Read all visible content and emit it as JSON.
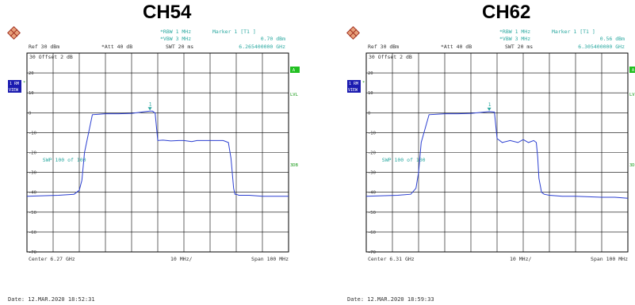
{
  "chart_data": [
    {
      "type": "line",
      "title": "CH54",
      "ylim": [
        -70,
        30
      ],
      "yticks": [
        20,
        10,
        0,
        -10,
        -20,
        -30,
        -40,
        -50,
        -60,
        -70
      ],
      "x_span_mhz": 100,
      "series": [
        {
          "x_mhz": [
            -50,
            -38,
            -32,
            -30,
            -29,
            -28,
            -25,
            -20,
            -15,
            -10,
            -5,
            -3,
            -2,
            -1,
            0,
            2,
            5,
            8,
            10,
            13,
            15,
            20,
            25,
            27,
            28,
            29,
            29.5,
            30,
            31,
            32,
            35,
            40,
            45,
            50
          ],
          "y_dbm": [
            -42,
            -41.5,
            -41,
            -39,
            -34,
            -20,
            -1,
            -0.5,
            -0.5,
            -0.3,
            0.5,
            0.8,
            0.8,
            -0.2,
            -14,
            -13.8,
            -14.2,
            -14,
            -14,
            -14.5,
            -14,
            -14,
            -14,
            -15,
            -23,
            -38,
            -41,
            -41,
            -41.5,
            -41.5,
            -41.5,
            -42,
            -42,
            -42
          ]
        }
      ],
      "labels": {
        "ref": "Ref  30 dBm",
        "att": "*Att  40 dB",
        "rbw": "*RBW 1 MHz",
        "vbw": "*VBW 3 MHz",
        "swt": "SWT 20 ms",
        "marker": "Marker 1 [T1 ]",
        "marker_level": "0.70 dBm",
        "marker_freq": "6.265400000 GHz",
        "offset": "30  Offset  2 dB",
        "sweep": "SWP    100 of    100",
        "center": "Center 6.27 GHz",
        "div": "10 MHz/",
        "span": "Span 100 MHz",
        "date": "Date: 12.MAR.2020  18:52:31",
        "marker_num": "1",
        "badge_1": "1 RM",
        "badge_2": "VIEW",
        "side_a": "A",
        "side_lvl": "LVL",
        "side_3db": "3DB"
      }
    },
    {
      "type": "line",
      "title": "CH62",
      "ylim": [
        -70,
        30
      ],
      "yticks": [
        20,
        10,
        0,
        -10,
        -20,
        -30,
        -40,
        -50,
        -60,
        -70
      ],
      "x_span_mhz": 100,
      "series": [
        {
          "x_mhz": [
            -50,
            -38,
            -33,
            -31,
            -30,
            -29,
            -26,
            -20,
            -15,
            -10,
            -5,
            -3,
            -1,
            0,
            2,
            5,
            8,
            10,
            12,
            14,
            15,
            15.5,
            16,
            17,
            18,
            20,
            25,
            30,
            40,
            45,
            50
          ],
          "y_dbm": [
            -42,
            -41.5,
            -41,
            -38,
            -30,
            -15,
            -1,
            -0.5,
            -0.5,
            -0.3,
            0.3,
            0.56,
            0.3,
            -13,
            -15,
            -14,
            -15,
            -13.5,
            -15,
            -14,
            -15,
            -22,
            -33,
            -40,
            -41,
            -41.5,
            -42,
            -42,
            -42.5,
            -42.5,
            -43
          ]
        }
      ],
      "labels": {
        "ref": "Ref  30 dBm",
        "att": "*Att  40 dB",
        "rbw": "*RBW 1 MHz",
        "vbw": "*VBW 3 MHz",
        "swt": "SWT 20 ms",
        "marker": "Marker 1 [T1 ]",
        "marker_level": "0.56 dBm",
        "marker_freq": "6.305400000 GHz",
        "offset": "30  Offset  2 dB",
        "sweep": "SWP    100 of    100",
        "center": "Center 6.31 GHz",
        "div": "10 MHz/",
        "span": "Span 100 MHz",
        "date": "Date: 12.MAR.2020  18:59:33",
        "marker_num": "1",
        "badge_1": "1 RM",
        "badge_2": "VIEW",
        "side_a": "A",
        "side_lvl": "LVL",
        "side_3db": "3DB"
      }
    }
  ],
  "colors": {
    "trace": "#2b3fd1",
    "annotation": "#2aa8a0",
    "badge": "#1b1bb0",
    "side_green": "#22c022",
    "grid": "#000000"
  }
}
